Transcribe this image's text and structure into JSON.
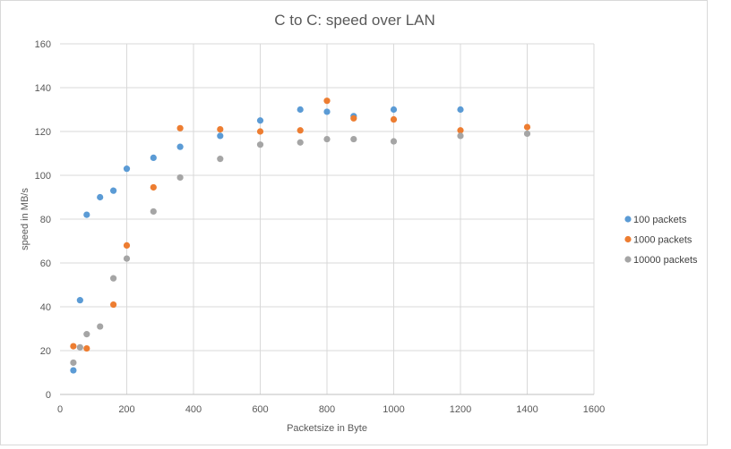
{
  "chart_data": {
    "type": "scatter",
    "title": "C to C: speed over LAN",
    "xlabel": "Packetsize in Byte",
    "ylabel": "speed in MB/s",
    "xlim": [
      0,
      1600
    ],
    "ylim": [
      0,
      160
    ],
    "x_ticks": [
      0,
      200,
      400,
      600,
      800,
      1000,
      1200,
      1400,
      1600
    ],
    "y_ticks": [
      0,
      20,
      40,
      60,
      80,
      100,
      120,
      140,
      160
    ],
    "grid": true,
    "legend_position": "right",
    "series": [
      {
        "name": "100  packets",
        "color": "#5b9bd5",
        "points": [
          [
            40,
            11
          ],
          [
            60,
            43
          ],
          [
            80,
            82
          ],
          [
            120,
            90
          ],
          [
            160,
            93
          ],
          [
            200,
            103
          ],
          [
            280,
            108
          ],
          [
            360,
            113
          ],
          [
            480,
            118
          ],
          [
            600,
            125
          ],
          [
            720,
            130
          ],
          [
            800,
            129
          ],
          [
            880,
            127
          ],
          [
            1000,
            130
          ],
          [
            1200,
            130
          ]
        ]
      },
      {
        "name": "1000  packets",
        "color": "#ed7d31",
        "points": [
          [
            40,
            22
          ],
          [
            80,
            21
          ],
          [
            160,
            41
          ],
          [
            200,
            68
          ],
          [
            280,
            94.5
          ],
          [
            360,
            121.5
          ],
          [
            480,
            121
          ],
          [
            600,
            120
          ],
          [
            720,
            120.5
          ],
          [
            800,
            134
          ],
          [
            880,
            126
          ],
          [
            1000,
            125.5
          ],
          [
            1200,
            120.5
          ],
          [
            1400,
            122
          ]
        ]
      },
      {
        "name": "10000 packets",
        "color": "#a5a5a5",
        "points": [
          [
            40,
            14.5
          ],
          [
            60,
            21.5
          ],
          [
            80,
            27.5
          ],
          [
            120,
            31
          ],
          [
            160,
            53
          ],
          [
            200,
            62
          ],
          [
            280,
            83.5
          ],
          [
            360,
            99
          ],
          [
            480,
            107.5
          ],
          [
            600,
            114
          ],
          [
            720,
            115
          ],
          [
            800,
            116.5
          ],
          [
            880,
            116.5
          ],
          [
            1000,
            115.5
          ],
          [
            1200,
            118
          ],
          [
            1400,
            119
          ]
        ]
      }
    ]
  }
}
